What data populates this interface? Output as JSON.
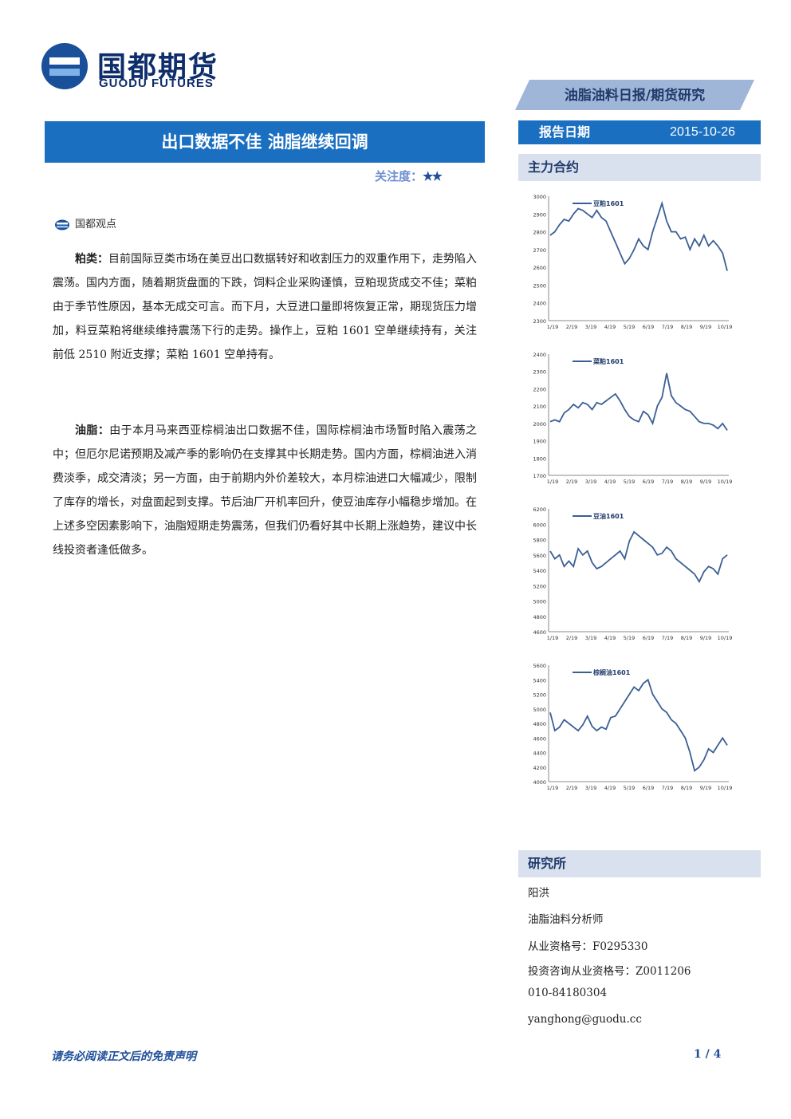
{
  "header": {
    "logo_cn": "国都期货",
    "logo_en": "GUODU FUTURES",
    "report_tag": "油脂油料日报/期货研究",
    "title": "出口数据不佳 油脂继续回调",
    "attention_label": "关注度：",
    "attention_stars": "★★",
    "date_label": "报告日期",
    "date_value": "2015-10-26",
    "contracts_heading": "主力合约"
  },
  "section": {
    "label": "国都观点"
  },
  "paragraphs": [
    {
      "lead": "粕类：",
      "text": "目前国际豆类市场在美豆出口数据转好和收割压力的双重作用下，走势陷入震荡。国内方面，随着期货盘面的下跌，饲料企业采购谨慎，豆粕现货成交不佳；菜粕由于季节性原因，基本无成交可言。而下月，大豆进口量即将恢复正常，期现货压力增加，料豆菜粕将继续维持震荡下行的走势。操作上，豆粕 1601 空单继续持有，关注前低 2510 附近支撑；菜粕 1601 空单持有。"
    },
    {
      "lead": "油脂：",
      "text": "由于本月马来西亚棕榈油出口数据不佳，国际棕榈油市场暂时陷入震荡之中；但厄尔尼诺预期及减产季的影响仍在支撑其中长期走势。国内方面，棕榈油进入消费淡季，成交清淡；另一方面，由于前期内外价差较大，本月棕油进口大幅减少，限制了库存的增长，对盘面起到支撑。节后油厂开机率回升，使豆油库存小幅稳步增加。在上述多空因素影响下，油脂短期走势震荡，但我们仍看好其中长期上涨趋势，建议中长线投资者逢低做多。"
    }
  ],
  "chart_data": [
    {
      "type": "line",
      "series": [
        {
          "name": "豆粕1601",
          "values": [
            2780,
            2800,
            2840,
            2870,
            2860,
            2900,
            2930,
            2920,
            2900,
            2880,
            2920,
            2880,
            2860,
            2800,
            2740,
            2680,
            2620,
            2650,
            2700,
            2760,
            2720,
            2700,
            2800,
            2880,
            2960,
            2860,
            2800,
            2800,
            2760,
            2770,
            2700,
            2760,
            2720,
            2780,
            2720,
            2750,
            2720,
            2680,
            2580
          ]
        }
      ],
      "x_ticks": [
        "1/19",
        "2/19",
        "3/19",
        "4/19",
        "5/19",
        "6/19",
        "7/19",
        "8/19",
        "9/19",
        "10/19"
      ],
      "y_ticks": [
        "3000",
        "2900",
        "2800",
        "2700",
        "2600",
        "2500",
        "2400",
        "2300"
      ],
      "ylim": [
        2300,
        3000
      ]
    },
    {
      "type": "line",
      "series": [
        {
          "name": "菜粕1601",
          "values": [
            2010,
            2020,
            2010,
            2060,
            2080,
            2110,
            2090,
            2120,
            2110,
            2080,
            2120,
            2110,
            2130,
            2150,
            2170,
            2130,
            2080,
            2040,
            2020,
            2010,
            2070,
            2050,
            2000,
            2100,
            2150,
            2290,
            2160,
            2120,
            2100,
            2080,
            2070,
            2040,
            2010,
            2000,
            2000,
            1990,
            1970,
            2000,
            1960
          ]
        }
      ],
      "x_ticks": [
        "1/19",
        "2/19",
        "3/19",
        "4/19",
        "5/19",
        "6/19",
        "7/19",
        "8/19",
        "9/19",
        "10/19"
      ],
      "y_ticks": [
        "2400",
        "2300",
        "2200",
        "2100",
        "2000",
        "1900",
        "1800",
        "1700"
      ],
      "ylim": [
        1700,
        2400
      ]
    },
    {
      "type": "line",
      "series": [
        {
          "name": "豆油1601",
          "values": [
            5650,
            5550,
            5600,
            5450,
            5520,
            5450,
            5680,
            5600,
            5650,
            5500,
            5420,
            5450,
            5500,
            5550,
            5600,
            5650,
            5550,
            5780,
            5900,
            5850,
            5800,
            5750,
            5700,
            5600,
            5620,
            5700,
            5650,
            5550,
            5500,
            5450,
            5400,
            5350,
            5250,
            5380,
            5450,
            5420,
            5350,
            5550,
            5600
          ]
        }
      ],
      "x_ticks": [
        "1/19",
        "2/19",
        "3/19",
        "4/19",
        "5/19",
        "6/19",
        "7/19",
        "8/19",
        "9/19",
        "10/19"
      ],
      "y_ticks": [
        "6200",
        "6000",
        "5800",
        "5600",
        "5400",
        "5200",
        "5000",
        "4800",
        "4600"
      ],
      "ylim": [
        4600,
        6200
      ]
    },
    {
      "type": "line",
      "series": [
        {
          "name": "棕榈油1601",
          "values": [
            4950,
            4700,
            4750,
            4850,
            4800,
            4750,
            4700,
            4780,
            4900,
            4760,
            4700,
            4750,
            4720,
            4880,
            4900,
            5000,
            5100,
            5200,
            5300,
            5250,
            5350,
            5400,
            5200,
            5100,
            5000,
            4950,
            4850,
            4800,
            4700,
            4600,
            4400,
            4150,
            4200,
            4300,
            4450,
            4400,
            4500,
            4600,
            4500
          ]
        }
      ],
      "x_ticks": [
        "1/19",
        "2/19",
        "3/19",
        "4/19",
        "5/19",
        "6/19",
        "7/19",
        "8/19",
        "9/19",
        "10/19"
      ],
      "y_ticks": [
        "5600",
        "5400",
        "5200",
        "5000",
        "4800",
        "4600",
        "4400",
        "4200",
        "4000"
      ],
      "ylim": [
        4000,
        5600
      ]
    }
  ],
  "analyst": {
    "heading": "研究所",
    "name": "阳洪",
    "role": "油脂油料分析师",
    "license": "从业资格号：F0295330",
    "consult": "投资咨询从业资格号：Z0011206",
    "phone": "010-84180304",
    "email": "yanghong@guodu.cc"
  },
  "footer": {
    "disclaimer": "请务必阅读正文后的免责声明",
    "page": "1 / 4"
  },
  "colors": {
    "accent": "#1a6fc0",
    "line": "#3a5f95",
    "header_light": "#d9e1ee"
  }
}
